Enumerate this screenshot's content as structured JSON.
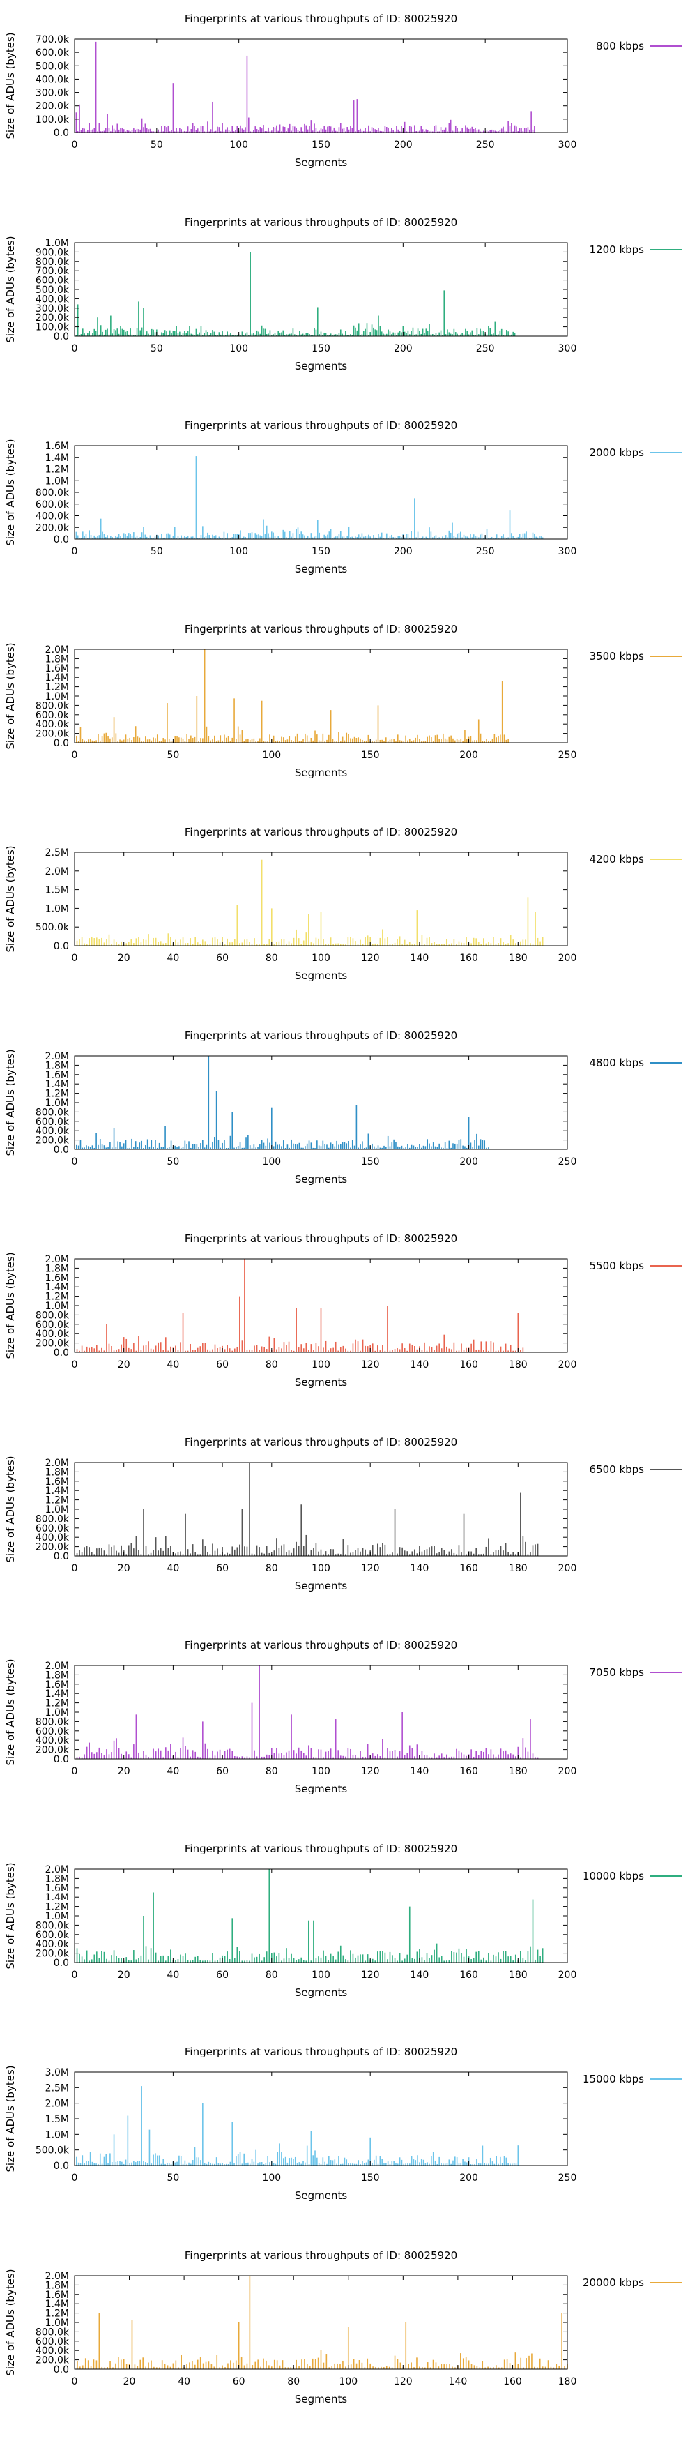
{
  "chart_data": [
    {
      "type": "bar",
      "title": "Fingerprints at various throughputs of ID: 80025920",
      "xlabel": "Segments",
      "ylabel": "Size of ADUs (bytes)",
      "legend": "800 kbps",
      "color": "#b04fd0",
      "xlim": [
        0,
        300
      ],
      "xticks": [
        0,
        50,
        100,
        150,
        200,
        250,
        300
      ],
      "ylim": [
        0,
        700000
      ],
      "yticks": [
        "0.0",
        "100.0k",
        "200.0k",
        "300.0k",
        "400.0k",
        "500.0k",
        "600.0k",
        "700.0k"
      ],
      "n": 280,
      "peaks": [
        [
          13,
          680000
        ],
        [
          60,
          370000
        ],
        [
          105,
          575000
        ],
        [
          170,
          240000
        ],
        [
          172,
          250000
        ],
        [
          84,
          230000
        ],
        [
          3,
          210000
        ],
        [
          20,
          140000
        ],
        [
          278,
          160000
        ],
        [
          1,
          150000
        ]
      ],
      "base": 30000
    },
    {
      "type": "bar",
      "title": "Fingerprints at various throughputs of ID: 80025920",
      "xlabel": "Segments",
      "ylabel": "Size of ADUs (bytes)",
      "legend": "1200 kbps",
      "color": "#2fae7f",
      "xlim": [
        0,
        300
      ],
      "xticks": [
        0,
        50,
        100,
        150,
        200,
        250,
        300
      ],
      "ylim": [
        0,
        1000000
      ],
      "yticks": [
        "0.0",
        "100.0k",
        "200.0k",
        "300.0k",
        "400.0k",
        "500.0k",
        "600.0k",
        "700.0k",
        "800.0k",
        "900.0k",
        "1.0M"
      ],
      "n": 268,
      "peaks": [
        [
          107,
          900000
        ],
        [
          225,
          490000
        ],
        [
          39,
          370000
        ],
        [
          42,
          300000
        ],
        [
          2,
          340000
        ],
        [
          148,
          310000
        ],
        [
          22,
          220000
        ],
        [
          14,
          200000
        ],
        [
          185,
          220000
        ]
      ],
      "base": 45000
    },
    {
      "type": "bar",
      "title": "Fingerprints at various throughputs of ID: 80025920",
      "xlabel": "Segments",
      "ylabel": "Size of ADUs (bytes)",
      "legend": "2000 kbps",
      "color": "#6cc4ea",
      "xlim": [
        0,
        300
      ],
      "xticks": [
        0,
        50,
        100,
        150,
        200,
        250,
        300
      ],
      "ylim": [
        0,
        1600000
      ],
      "yticks": [
        "0.0",
        "200.0k",
        "400.0k",
        "600.0k",
        "800.0k",
        "1.0M",
        "1.2M",
        "1.4M",
        "1.6M"
      ],
      "n": 285,
      "peaks": [
        [
          74,
          1420000
        ],
        [
          207,
          700000
        ],
        [
          265,
          500000
        ],
        [
          16,
          350000
        ],
        [
          115,
          340000
        ],
        [
          148,
          330000
        ],
        [
          230,
          280000
        ]
      ],
      "base": 70000
    },
    {
      "type": "bar",
      "title": "Fingerprints at various throughputs of ID: 80025920",
      "xlabel": "Segments",
      "ylabel": "Size of ADUs (bytes)",
      "legend": "3500 kbps",
      "color": "#e8a93a",
      "xlim": [
        0,
        250
      ],
      "xticks": [
        0,
        50,
        100,
        150,
        200,
        250
      ],
      "ylim": [
        0,
        2000000
      ],
      "yticks": [
        "0.0",
        "200.0k",
        "400.0k",
        "600.0k",
        "800.0k",
        "1.0M",
        "1.2M",
        "1.4M",
        "1.6M",
        "1.8M",
        "2.0M"
      ],
      "n": 220,
      "peaks": [
        [
          66,
          2000000
        ],
        [
          62,
          1000000
        ],
        [
          81,
          950000
        ],
        [
          217,
          1320000
        ],
        [
          95,
          900000
        ],
        [
          47,
          850000
        ],
        [
          20,
          550000
        ],
        [
          154,
          800000
        ],
        [
          130,
          700000
        ],
        [
          205,
          500000
        ]
      ],
      "base": 110000
    },
    {
      "type": "bar",
      "title": "Fingerprints at various throughputs of ID: 80025920",
      "xlabel": "Segments",
      "ylabel": "Size of ADUs (bytes)",
      "legend": "4200 kbps",
      "color": "#f2df6a",
      "xlim": [
        0,
        200
      ],
      "xticks": [
        0,
        20,
        40,
        60,
        80,
        100,
        120,
        140,
        160,
        180,
        200
      ],
      "ylim": [
        0,
        2500000
      ],
      "yticks": [
        "0.0",
        "500.0k",
        "1.0M",
        "1.5M",
        "2.0M",
        "2.5M"
      ],
      "n": 190,
      "peaks": [
        [
          76,
          2300000
        ],
        [
          66,
          1100000
        ],
        [
          80,
          1000000
        ],
        [
          139,
          950000
        ],
        [
          184,
          1300000
        ],
        [
          187,
          900000
        ],
        [
          95,
          850000
        ],
        [
          100,
          900000
        ]
      ],
      "base": 130000
    },
    {
      "type": "bar",
      "title": "Fingerprints at various throughputs of ID: 80025920",
      "xlabel": "Segments",
      "ylabel": "Size of ADUs (bytes)",
      "legend": "4800 kbps",
      "color": "#2f8fc6",
      "xlim": [
        0,
        250
      ],
      "xticks": [
        0,
        50,
        100,
        150,
        200,
        250
      ],
      "ylim": [
        0,
        2000000
      ],
      "yticks": [
        "0.0",
        "200.0k",
        "400.0k",
        "600.0k",
        "800.0k",
        "1.0M",
        "1.2M",
        "1.4M",
        "1.6M",
        "1.8M",
        "2.0M"
      ],
      "n": 210,
      "peaks": [
        [
          68,
          2000000
        ],
        [
          143,
          950000
        ],
        [
          100,
          900000
        ],
        [
          72,
          1250000
        ],
        [
          80,
          800000
        ],
        [
          200,
          700000
        ],
        [
          20,
          450000
        ],
        [
          46,
          500000
        ],
        [
          11,
          350000
        ]
      ],
      "base": 120000
    },
    {
      "type": "bar",
      "title": "Fingerprints at various throughputs of ID: 80025920",
      "xlabel": "Segments",
      "ylabel": "Size of ADUs (bytes)",
      "legend": "5500 kbps",
      "color": "#e9644f",
      "xlim": [
        0,
        200
      ],
      "xticks": [
        0,
        20,
        40,
        60,
        80,
        100,
        120,
        140,
        160,
        180,
        200
      ],
      "ylim": [
        0,
        2000000
      ],
      "yticks": [
        "0.0",
        "200.0k",
        "400.0k",
        "600.0k",
        "800.0k",
        "1.0M",
        "1.2M",
        "1.4M",
        "1.6M",
        "1.8M",
        "2.0M"
      ],
      "n": 182,
      "peaks": [
        [
          69,
          2000000
        ],
        [
          67,
          1200000
        ],
        [
          90,
          950000
        ],
        [
          127,
          1000000
        ],
        [
          100,
          950000
        ],
        [
          44,
          850000
        ],
        [
          180,
          850000
        ],
        [
          13,
          600000
        ]
      ],
      "base": 130000
    },
    {
      "type": "bar",
      "title": "Fingerprints at various throughputs of ID: 80025920",
      "xlabel": "Segments",
      "ylabel": "Size of ADUs (bytes)",
      "legend": "6500 kbps",
      "color": "#555555",
      "xlim": [
        0,
        200
      ],
      "xticks": [
        0,
        20,
        40,
        60,
        80,
        100,
        120,
        140,
        160,
        180,
        200
      ],
      "ylim": [
        0,
        2000000
      ],
      "yticks": [
        "0.0",
        "200.0k",
        "400.0k",
        "600.0k",
        "800.0k",
        "1.0M",
        "1.2M",
        "1.4M",
        "1.6M",
        "1.8M",
        "2.0M"
      ],
      "n": 188,
      "peaks": [
        [
          71,
          2000000
        ],
        [
          181,
          1350000
        ],
        [
          28,
          1000000
        ],
        [
          92,
          1100000
        ],
        [
          68,
          1000000
        ],
        [
          130,
          1000000
        ],
        [
          45,
          900000
        ],
        [
          158,
          900000
        ]
      ],
      "base": 150000
    },
    {
      "type": "bar",
      "title": "Fingerprints at various throughputs of ID: 80025920",
      "xlabel": "Segments",
      "ylabel": "Size of ADUs (bytes)",
      "legend": "7050 kbps",
      "color": "#b04fd0",
      "xlim": [
        0,
        200
      ],
      "xticks": [
        0,
        20,
        40,
        60,
        80,
        100,
        120,
        140,
        160,
        180,
        200
      ],
      "ylim": [
        0,
        2000000
      ],
      "yticks": [
        "0.0",
        "200.0k",
        "400.0k",
        "600.0k",
        "800.0k",
        "1.0M",
        "1.2M",
        "1.4M",
        "1.6M",
        "1.8M",
        "2.0M"
      ],
      "n": 188,
      "peaks": [
        [
          75,
          2000000
        ],
        [
          72,
          1200000
        ],
        [
          25,
          950000
        ],
        [
          88,
          950000
        ],
        [
          133,
          1000000
        ],
        [
          185,
          850000
        ],
        [
          106,
          850000
        ],
        [
          52,
          800000
        ]
      ],
      "base": 140000
    },
    {
      "type": "bar",
      "title": "Fingerprints at various throughputs of ID: 80025920",
      "xlabel": "Segments",
      "ylabel": "Size of ADUs (bytes)",
      "legend": "10000 kbps",
      "color": "#2fae7f",
      "xlim": [
        0,
        200
      ],
      "xticks": [
        0,
        20,
        40,
        60,
        80,
        100,
        120,
        140,
        160,
        180,
        200
      ],
      "ylim": [
        0,
        2000000
      ],
      "yticks": [
        "0.0",
        "200.0k",
        "400.0k",
        "600.0k",
        "800.0k",
        "1.0M",
        "1.2M",
        "1.4M",
        "1.6M",
        "1.8M",
        "2.0M"
      ],
      "n": 190,
      "peaks": [
        [
          79,
          2000000
        ],
        [
          32,
          1500000
        ],
        [
          186,
          1350000
        ],
        [
          136,
          1200000
        ],
        [
          64,
          950000
        ],
        [
          97,
          900000
        ],
        [
          95,
          900000
        ],
        [
          28,
          1000000
        ]
      ],
      "base": 150000
    },
    {
      "type": "bar",
      "title": "Fingerprints at various throughputs of ID: 80025920",
      "xlabel": "Segments",
      "ylabel": "Size of ADUs (bytes)",
      "legend": "15000 kbps",
      "color": "#6cc4ea",
      "xlim": [
        0,
        250
      ],
      "xticks": [
        0,
        50,
        100,
        150,
        200,
        250
      ],
      "ylim": [
        0,
        3000000
      ],
      "yticks": [
        "0.0",
        "500.0k",
        "1.0M",
        "1.5M",
        "2.0M",
        "2.5M",
        "3.0M"
      ],
      "n": 225,
      "peaks": [
        [
          34,
          2550000
        ],
        [
          65,
          2000000
        ],
        [
          27,
          1600000
        ],
        [
          38,
          1150000
        ],
        [
          80,
          1400000
        ],
        [
          120,
          1100000
        ],
        [
          20,
          1000000
        ],
        [
          150,
          900000
        ]
      ],
      "base": 180000
    },
    {
      "type": "bar",
      "title": "Fingerprints at various throughputs of ID: 80025920",
      "xlabel": "Segments",
      "ylabel": "Size of ADUs (bytes)",
      "legend": "20000 kbps",
      "color": "#e8a93a",
      "xlim": [
        0,
        180
      ],
      "xticks": [
        0,
        20,
        40,
        60,
        80,
        100,
        120,
        140,
        160,
        180
      ],
      "ylim": [
        0,
        2000000
      ],
      "yticks": [
        "0.0",
        "200.0k",
        "400.0k",
        "600.0k",
        "800.0k",
        "1.0M",
        "1.2M",
        "1.4M",
        "1.6M",
        "1.8M",
        "2.0M"
      ],
      "n": 180,
      "peaks": [
        [
          64,
          2000000
        ],
        [
          178,
          1200000
        ],
        [
          9,
          1200000
        ],
        [
          21,
          1050000
        ],
        [
          60,
          1000000
        ],
        [
          121,
          1000000
        ],
        [
          100,
          900000
        ]
      ],
      "base": 140000
    }
  ]
}
